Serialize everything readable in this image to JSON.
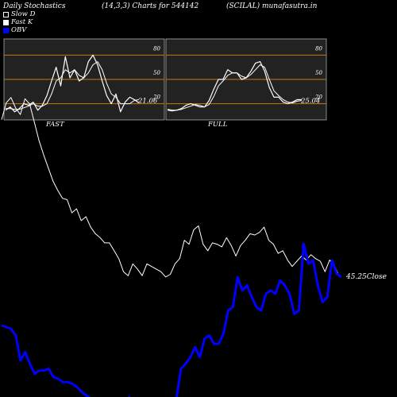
{
  "header": {
    "title": "Daily Stochastics",
    "params": "(14,3,3) Charts for 544142",
    "symbol": "(SCILAL) munafasutra.in"
  },
  "legend": [
    {
      "label": "Slow  D",
      "color": "#ffffff",
      "swatch": "outline"
    },
    {
      "label": "Fast K",
      "color": "#ffffff",
      "swatch": "filled"
    },
    {
      "label": "OBV",
      "color": "#0000ff",
      "swatch": "filled"
    }
  ],
  "panels": {
    "fast": {
      "label": "FAST",
      "last_value": "21.06"
    },
    "full": {
      "label": "FULL",
      "last_value": "25.04"
    }
  },
  "colors": {
    "background": "#000000",
    "panel_bg": "#222222",
    "level_lines": "#c8780a",
    "stoch_lines": "#ffffff",
    "price_line": "#ffffff",
    "obv_line": "#0000ff"
  },
  "chart_data": [
    {
      "type": "line",
      "panel": "FAST",
      "ylim": [
        0,
        100
      ],
      "levels": [
        20,
        50,
        80
      ],
      "level_labels": [
        "80",
        "50",
        "20"
      ],
      "series": [
        {
          "name": "Fast K",
          "values": [
            12,
            16,
            10,
            14,
            20,
            18,
            22,
            12,
            18,
            30,
            48,
            65,
            42,
            78,
            52,
            62,
            48,
            52,
            72,
            80,
            68,
            48,
            30,
            20,
            32,
            10,
            22,
            28,
            25,
            21
          ]
        },
        {
          "name": "Slow  D",
          "values": [
            14,
            14,
            13,
            13,
            15,
            17,
            20,
            17,
            17,
            20,
            32,
            48,
            52,
            62,
            58,
            62,
            55,
            52,
            58,
            68,
            72,
            62,
            45,
            32,
            28,
            20,
            20,
            20,
            24,
            25
          ]
        }
      ]
    },
    {
      "type": "line",
      "panel": "FULL",
      "ylim": [
        0,
        100
      ],
      "levels": [
        20,
        50,
        80
      ],
      "level_labels": [
        "80",
        "50",
        "20"
      ],
      "series": [
        {
          "name": "Fast K",
          "values": [
            13,
            12,
            12,
            14,
            18,
            20,
            18,
            16,
            16,
            24,
            38,
            50,
            50,
            62,
            58,
            58,
            50,
            52,
            60,
            70,
            72,
            60,
            40,
            28,
            28,
            22,
            20,
            22,
            25,
            25
          ]
        },
        {
          "name": "Slow  D",
          "values": [
            12,
            11,
            12,
            13,
            15,
            17,
            19,
            18,
            16,
            19,
            29,
            42,
            48,
            55,
            58,
            58,
            54,
            52,
            56,
            62,
            68,
            65,
            50,
            36,
            30,
            25,
            22,
            21,
            23,
            24
          ]
        }
      ]
    },
    {
      "type": "line",
      "panel": "price",
      "last_close": "45.25",
      "close_label": "Close",
      "series": [
        {
          "name": "Close",
          "values": [
            57.2,
            58.5,
            58.9,
            58.1,
            57.6,
            58.8,
            58.4,
            57.0,
            55.6,
            54.5,
            53.5,
            52.5,
            51.8,
            51.2,
            51.1,
            50.1,
            50.4,
            49.5,
            49.8,
            49.0,
            48.5,
            48.2,
            47.8,
            47.8,
            47.2,
            46.6,
            45.6,
            45.3,
            46.2,
            45.8,
            45.3,
            46.2,
            46.0,
            45.8,
            45.6,
            45.2,
            45.4,
            46.2,
            46.6,
            48.0,
            47.7,
            48.8,
            49.1,
            47.7,
            47.2,
            47.8,
            47.7,
            47.5,
            48.2,
            47.6,
            46.8,
            47.6,
            48.0,
            48.5,
            48.4,
            48.6,
            49.0,
            48.0,
            47.7,
            47.0,
            47.2,
            46.5,
            46.0,
            46.4,
            46.8,
            46.5,
            46.9,
            46.6,
            46.4,
            45.6,
            46.5,
            46.1,
            45.25
          ]
        }
      ]
    },
    {
      "type": "line",
      "panel": "OBV",
      "series": [
        {
          "name": "OBV",
          "values": [
            41,
            40,
            39,
            35,
            20,
            25,
            18,
            12,
            14,
            14,
            15,
            10,
            9,
            7,
            7,
            6,
            4,
            1,
            -1,
            -3,
            -4,
            -5,
            -3,
            -4,
            -3,
            -8,
            -5,
            -2,
            -4,
            -8,
            -12,
            -10,
            -8,
            -6,
            -6,
            -6,
            -7,
            -4,
            15,
            18,
            22,
            28,
            22,
            33,
            35,
            30,
            30,
            36,
            50,
            52,
            70,
            62,
            65,
            58,
            52,
            50,
            60,
            62,
            60,
            68,
            65,
            60,
            48,
            50,
            90,
            78,
            80,
            65,
            55,
            58,
            80,
            72,
            70
          ]
        }
      ]
    }
  ]
}
